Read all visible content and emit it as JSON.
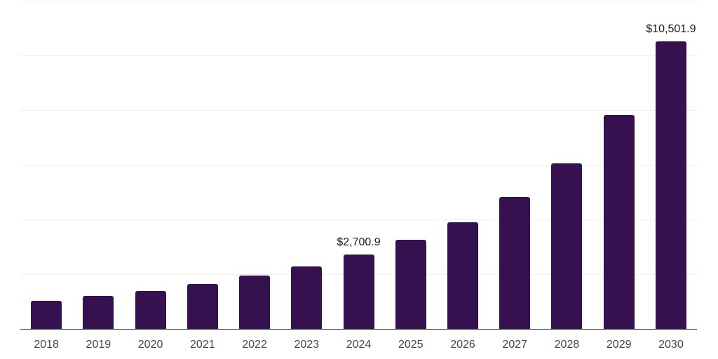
{
  "chart_data": {
    "type": "bar",
    "title": "",
    "xlabel": "",
    "ylabel": "",
    "categories": [
      "2018",
      "2019",
      "2020",
      "2021",
      "2022",
      "2023",
      "2024",
      "2025",
      "2026",
      "2027",
      "2028",
      "2029",
      "2030"
    ],
    "values": [
      1010,
      1190,
      1370,
      1640,
      1940,
      2270,
      2700.9,
      3240,
      3880,
      4820,
      6030,
      7800,
      10501.9
    ],
    "point_labels": [
      "",
      "",
      "",
      "",
      "",
      "",
      "$2,700.9",
      "",
      "",
      "",
      "",
      "",
      "$10,501.9"
    ],
    "ylim": [
      0,
      12000
    ],
    "gridline_values": [
      2000,
      4000,
      6000,
      8000,
      10000,
      12000
    ],
    "grid": true,
    "legend_position": "none",
    "colors": {
      "bar": "#351150",
      "axis_line": "#262626",
      "gridline": "#f0f0f0",
      "data_label": "#1a1a1a",
      "tick_label": "#454545",
      "background": "#ffffff"
    }
  }
}
